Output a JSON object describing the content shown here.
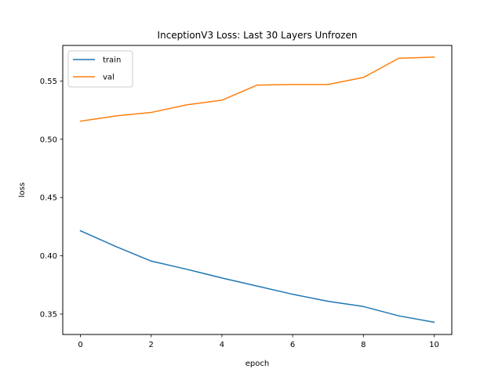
{
  "chart_data": {
    "type": "line",
    "title": "InceptionV3 Loss: Last 30 Layers Unfrozen",
    "xlabel": "epoch",
    "ylabel": "loss",
    "xlim": [
      -0.5,
      10.5
    ],
    "ylim": [
      0.3325,
      0.5805
    ],
    "x": [
      0,
      1,
      2,
      3,
      4,
      5,
      6,
      7,
      8,
      9,
      10
    ],
    "x_ticks": [
      0,
      2,
      4,
      6,
      8,
      10
    ],
    "x_tick_labels": [
      "0",
      "2",
      "4",
      "6",
      "8",
      "10"
    ],
    "y_ticks": [
      0.35,
      0.4,
      0.45,
      0.5,
      0.55
    ],
    "y_tick_labels": [
      "0.35",
      "0.40",
      "0.45",
      "0.50",
      "0.55"
    ],
    "grid": false,
    "legend_position": "top-left",
    "series": [
      {
        "name": "train",
        "color": "#1f77b4",
        "values": [
          0.4215,
          0.408,
          0.3955,
          0.3885,
          0.381,
          0.374,
          0.367,
          0.361,
          0.3565,
          0.3485,
          0.343
        ]
      },
      {
        "name": "val",
        "color": "#ff7f0e",
        "values": [
          0.5155,
          0.52,
          0.523,
          0.5295,
          0.5335,
          0.5465,
          0.547,
          0.547,
          0.553,
          0.5695,
          0.5705
        ]
      }
    ]
  }
}
